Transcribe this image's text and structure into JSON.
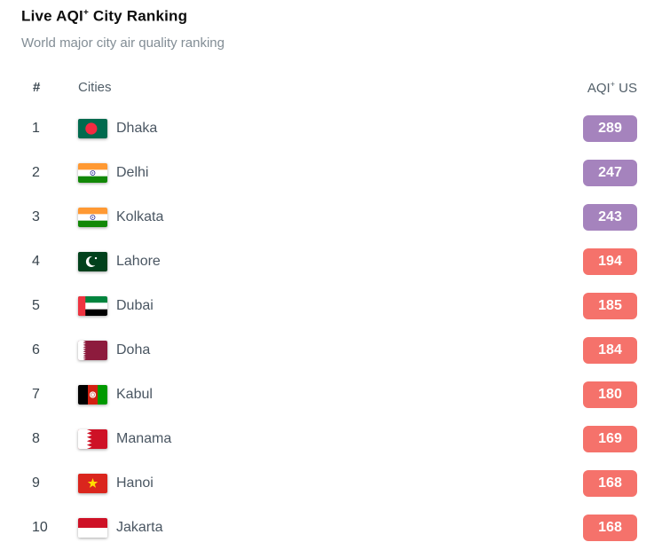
{
  "header": {
    "title_main": "Live AQI",
    "title_sup": "+",
    "title_rest": " City Ranking",
    "subtitle": "World major city air quality ranking"
  },
  "table": {
    "columns": {
      "rank": "#",
      "cities": "Cities",
      "aqi_main": "AQI",
      "aqi_sup": "+",
      "aqi_rest": " US"
    },
    "rows": [
      {
        "rank": "1",
        "city": "Dhaka",
        "flag": "bangladesh",
        "aqi": "289",
        "level": "very_unhealthy"
      },
      {
        "rank": "2",
        "city": "Delhi",
        "flag": "india",
        "aqi": "247",
        "level": "very_unhealthy"
      },
      {
        "rank": "3",
        "city": "Kolkata",
        "flag": "india",
        "aqi": "243",
        "level": "very_unhealthy"
      },
      {
        "rank": "4",
        "city": "Lahore",
        "flag": "pakistan",
        "aqi": "194",
        "level": "unhealthy"
      },
      {
        "rank": "5",
        "city": "Dubai",
        "flag": "united-arab-emirates",
        "aqi": "185",
        "level": "unhealthy"
      },
      {
        "rank": "6",
        "city": "Doha",
        "flag": "qatar",
        "aqi": "184",
        "level": "unhealthy"
      },
      {
        "rank": "7",
        "city": "Kabul",
        "flag": "afghanistan",
        "aqi": "180",
        "level": "unhealthy"
      },
      {
        "rank": "8",
        "city": "Manama",
        "flag": "bahrain",
        "aqi": "169",
        "level": "unhealthy"
      },
      {
        "rank": "9",
        "city": "Hanoi",
        "flag": "vietnam",
        "aqi": "168",
        "level": "unhealthy"
      },
      {
        "rank": "10",
        "city": "Jakarta",
        "flag": "indonesia",
        "aqi": "168",
        "level": "unhealthy"
      }
    ]
  },
  "colors": {
    "very_unhealthy": "#a583bd",
    "unhealthy": "#f5726b"
  }
}
